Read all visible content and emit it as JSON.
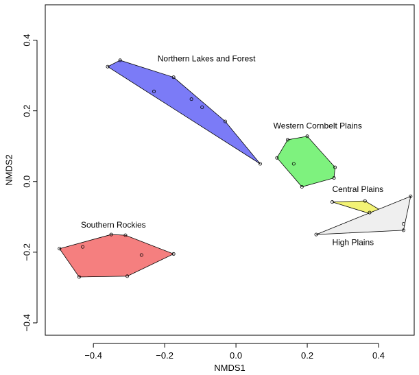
{
  "chart_data": {
    "type": "scatter",
    "title": "",
    "xlabel": "NMDS1",
    "ylabel": "NMDS2",
    "xlim": [
      -0.535,
      0.5
    ],
    "ylim": [
      -0.435,
      0.5
    ],
    "xticks": [
      -0.4,
      -0.2,
      0.0,
      0.2,
      0.4
    ],
    "xtick_labels": [
      "−0.4",
      "−0.2",
      "0.0",
      "0.2",
      "0.4"
    ],
    "yticks": [
      -0.4,
      -0.2,
      0.0,
      0.2,
      0.4
    ],
    "ytick_labels": [
      "−0.4",
      "−0.2",
      "0.0",
      "0.2",
      "0.4"
    ],
    "grid": false,
    "legend": "none",
    "groups": [
      {
        "name": "Northern Lakes and Forest",
        "fill": "#7b7bf7",
        "points": [
          [
            -0.36,
            0.325
          ],
          [
            -0.325,
            0.343
          ],
          [
            -0.175,
            0.295
          ],
          [
            -0.23,
            0.255
          ],
          [
            -0.125,
            0.233
          ],
          [
            -0.095,
            0.21
          ],
          [
            -0.03,
            0.17
          ],
          [
            0.068,
            0.05
          ]
        ],
        "hull": [
          [
            -0.36,
            0.325
          ],
          [
            -0.325,
            0.343
          ],
          [
            -0.175,
            0.295
          ],
          [
            -0.03,
            0.17
          ],
          [
            0.068,
            0.05
          ]
        ],
        "label_pos": [
          -0.22,
          0.34
        ]
      },
      {
        "name": "Western Cornbelt Plains",
        "fill": "#7ef27e",
        "points": [
          [
            0.2,
            0.128
          ],
          [
            0.145,
            0.118
          ],
          [
            0.115,
            0.067
          ],
          [
            0.162,
            0.05
          ],
          [
            0.278,
            0.04
          ],
          [
            0.275,
            0.01
          ],
          [
            0.185,
            -0.015
          ]
        ],
        "hull": [
          [
            0.145,
            0.118
          ],
          [
            0.2,
            0.128
          ],
          [
            0.278,
            0.04
          ],
          [
            0.275,
            0.01
          ],
          [
            0.185,
            -0.015
          ],
          [
            0.115,
            0.067
          ]
        ],
        "label_pos": [
          0.105,
          0.15
        ]
      },
      {
        "name": "Central Plains",
        "fill": "#f3f375",
        "points": [
          [
            0.27,
            -0.058
          ],
          [
            0.362,
            -0.055
          ],
          [
            0.375,
            -0.088
          ],
          [
            0.47,
            -0.12
          ]
        ],
        "hull": [
          [
            0.27,
            -0.058
          ],
          [
            0.362,
            -0.055
          ],
          [
            0.47,
            -0.12
          ]
        ],
        "label_pos": [
          0.27,
          -0.03
        ]
      },
      {
        "name": "High Plains",
        "fill": "#efefef",
        "points": [
          [
            0.49,
            -0.042
          ],
          [
            0.47,
            -0.138
          ],
          [
            0.225,
            -0.15
          ]
        ],
        "hull": [
          [
            0.49,
            -0.042
          ],
          [
            0.47,
            -0.138
          ],
          [
            0.225,
            -0.15
          ]
        ],
        "label_pos": [
          0.27,
          -0.18
        ]
      },
      {
        "name": "Southern Rockies",
        "fill": "#f57f7f",
        "points": [
          [
            -0.495,
            -0.19
          ],
          [
            -0.43,
            -0.185
          ],
          [
            -0.35,
            -0.15
          ],
          [
            -0.31,
            -0.152
          ],
          [
            -0.265,
            -0.208
          ],
          [
            -0.175,
            -0.205
          ],
          [
            -0.44,
            -0.27
          ],
          [
            -0.305,
            -0.268
          ]
        ],
        "hull": [
          [
            -0.495,
            -0.19
          ],
          [
            -0.35,
            -0.15
          ],
          [
            -0.31,
            -0.152
          ],
          [
            -0.175,
            -0.205
          ],
          [
            -0.305,
            -0.268
          ],
          [
            -0.44,
            -0.27
          ]
        ],
        "label_pos": [
          -0.435,
          -0.13
        ]
      }
    ]
  }
}
